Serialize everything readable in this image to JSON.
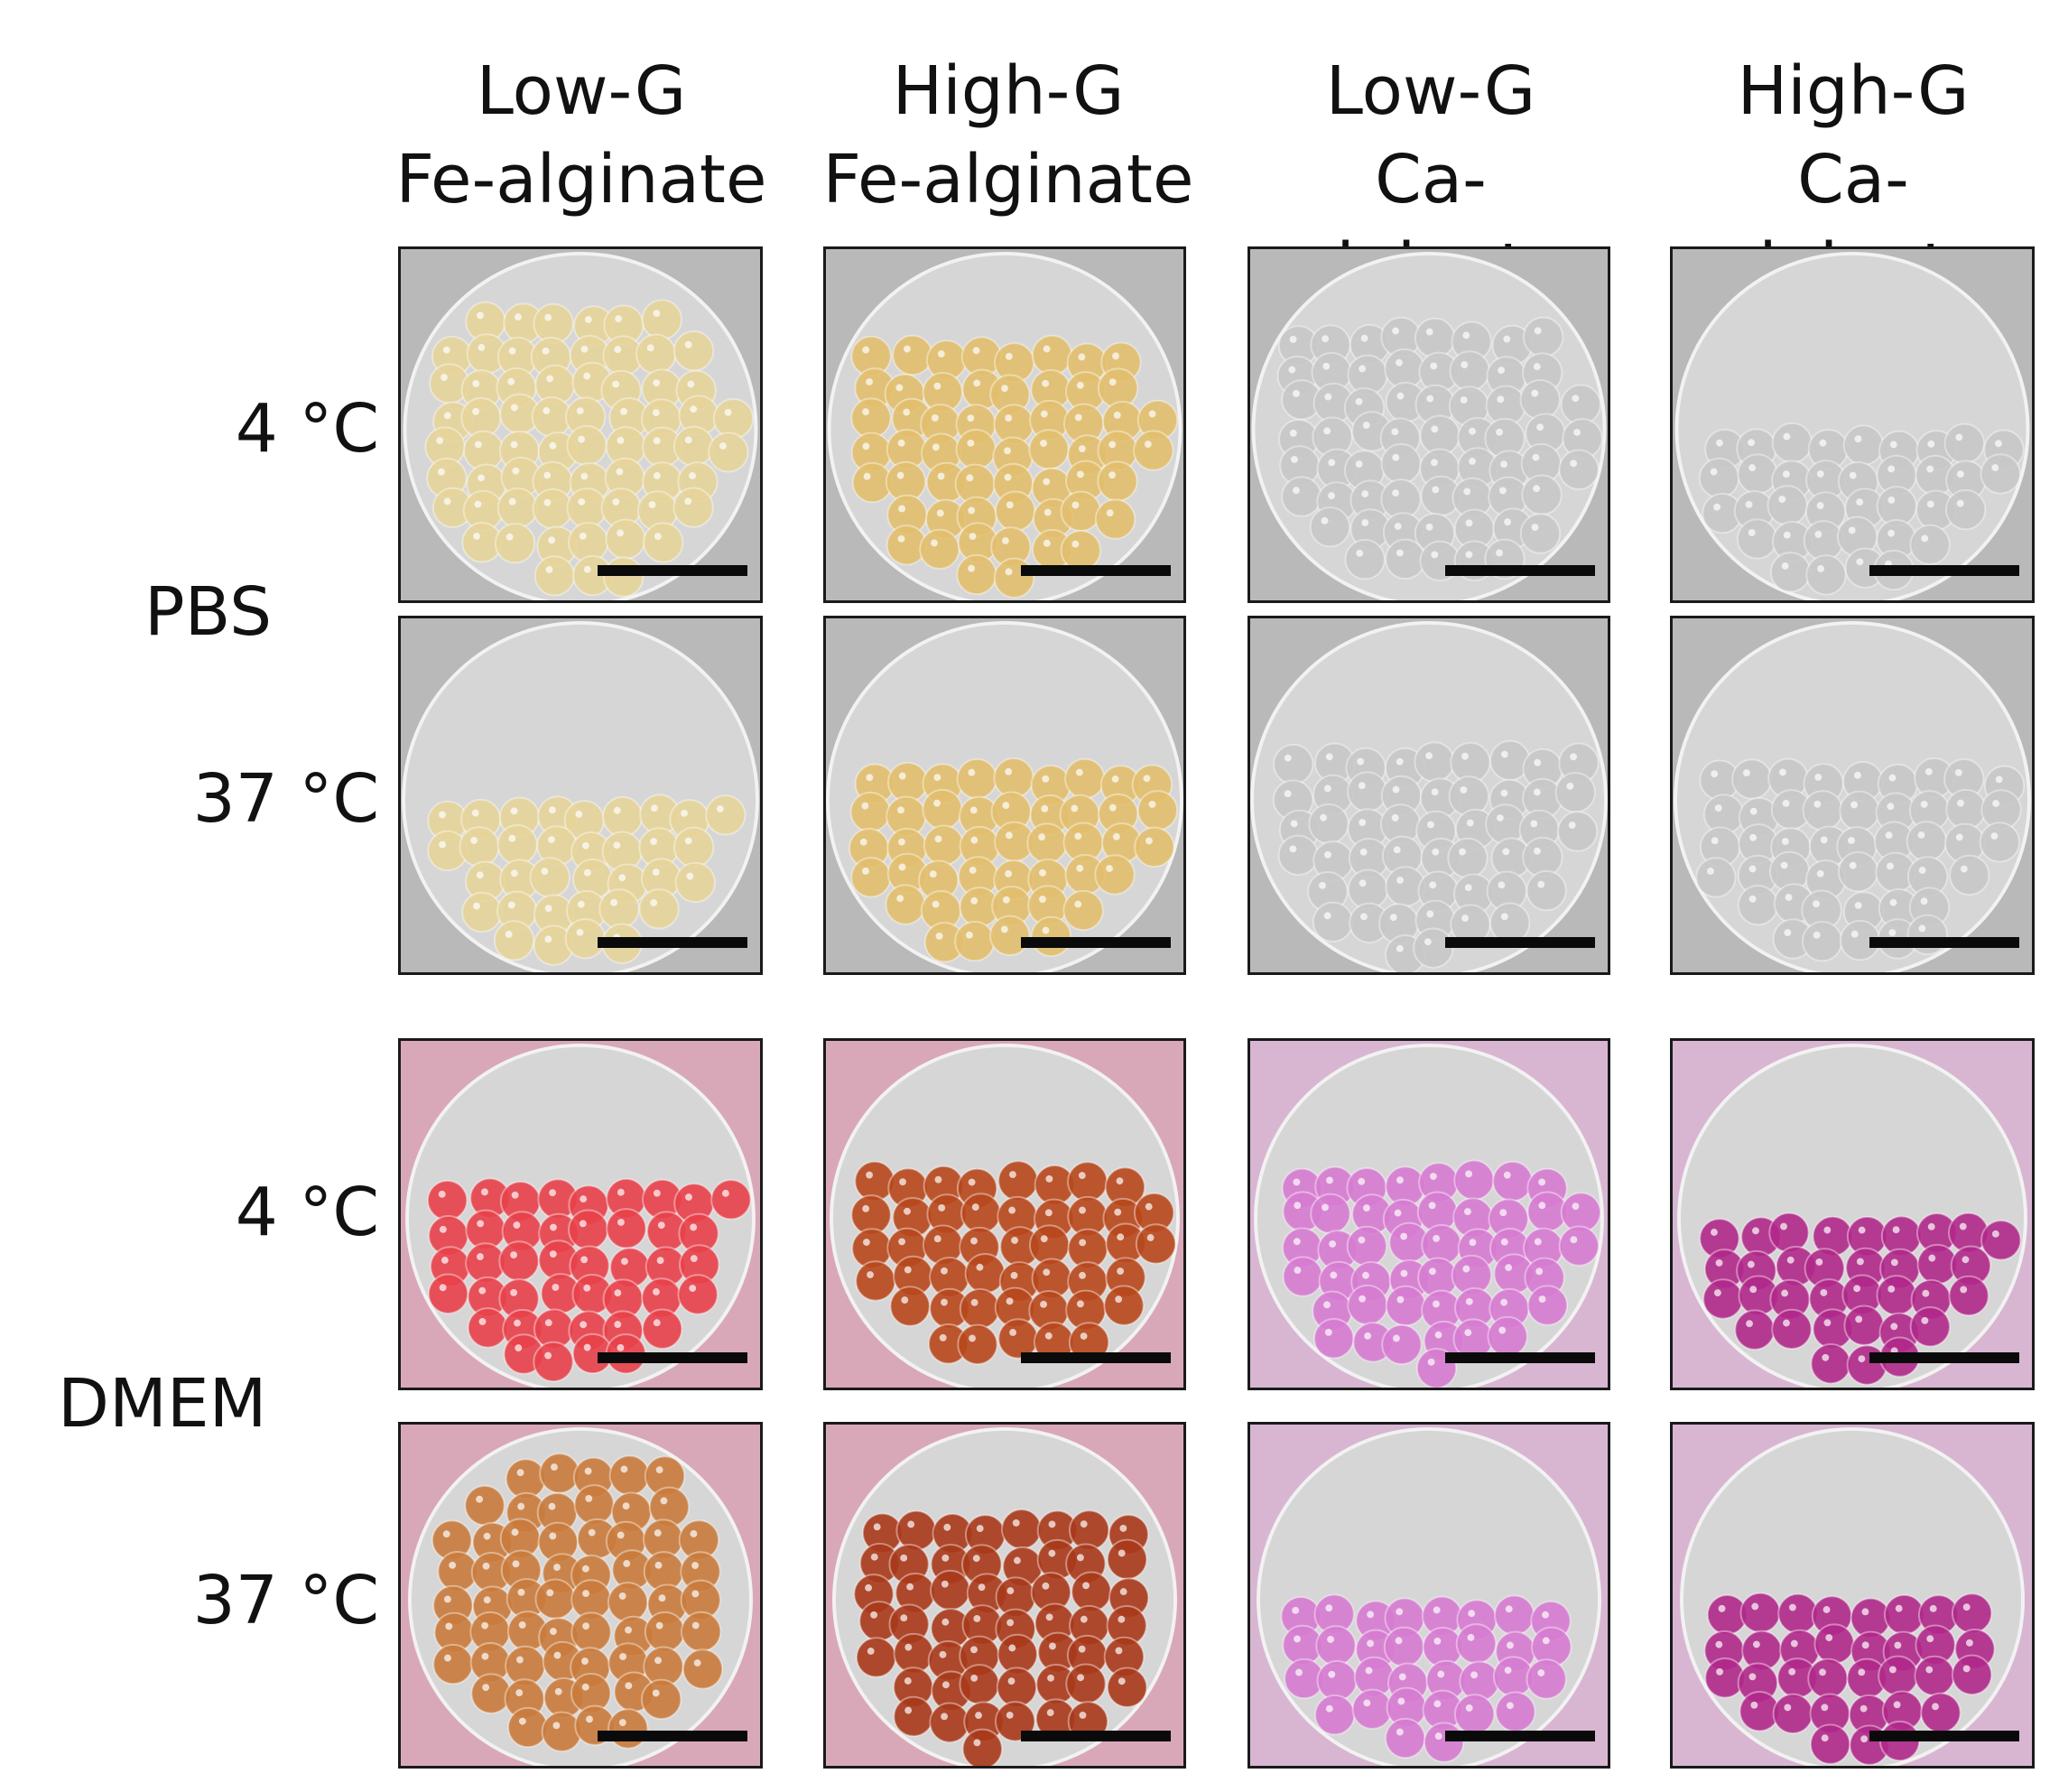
{
  "columns": [
    {
      "line1": "Low-G",
      "line2": "Fe-alginate"
    },
    {
      "line1": "High-G",
      "line2": "Fe-alginate"
    },
    {
      "line1": "Low-G",
      "line2": "Ca-alginate"
    },
    {
      "line1": "High-G",
      "line2": "Ca-alginate"
    }
  ],
  "groups": [
    {
      "label": "PBS",
      "temps": [
        "4 °C",
        "37 °C"
      ]
    },
    {
      "label": "DMEM",
      "temps": [
        "4 °C",
        "37 °C"
      ]
    }
  ],
  "colors": {
    "fe_pbs_low": "#e6d49a",
    "fe_pbs_high": "#e2bf6e",
    "ca_pbs": "#c8c8c8",
    "fe_dmem_low_4": "#e8404a",
    "fe_dmem_high_4": "#b8471c",
    "fe_dmem_low_37": "#c97b3c",
    "fe_dmem_high_37": "#a8381a",
    "ca_dmem_low": "#d67bd0",
    "ca_dmem_high": "#b0288a",
    "scale_bar": "#0a0a0a"
  }
}
